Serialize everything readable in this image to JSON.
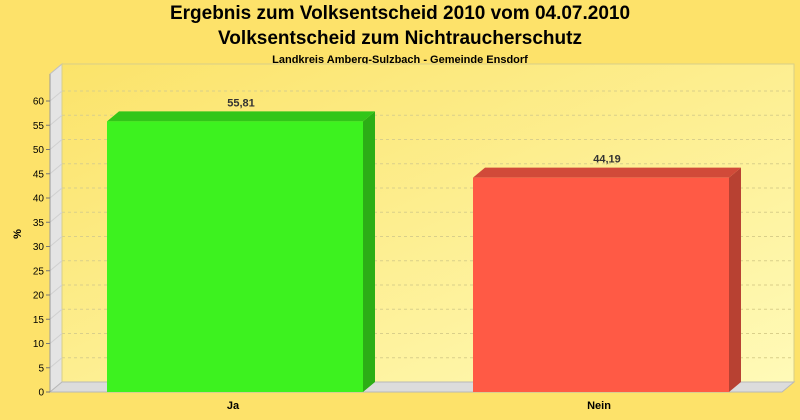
{
  "chart_data": {
    "type": "bar",
    "title": "Ergebnis zum Volksentscheid 2010 vom 04.07.2010",
    "subtitle": "Volksentscheid zum Nichtraucherschutz",
    "caption": "Landkreis Amberg-Sulzbach - Gemeinde Ensdorf",
    "xlabel": "",
    "ylabel": "%",
    "categories": [
      "Ja",
      "Nein"
    ],
    "values": [
      55.81,
      44.19
    ],
    "value_labels": [
      "55,81",
      "44,19"
    ],
    "colors": [
      "#3df21f",
      "#ff5a45"
    ],
    "ylim": [
      0,
      60
    ],
    "yticks": [
      0,
      5,
      10,
      15,
      20,
      25,
      30,
      35,
      40,
      45,
      50,
      55,
      60
    ],
    "grid": true,
    "legend": "none"
  }
}
